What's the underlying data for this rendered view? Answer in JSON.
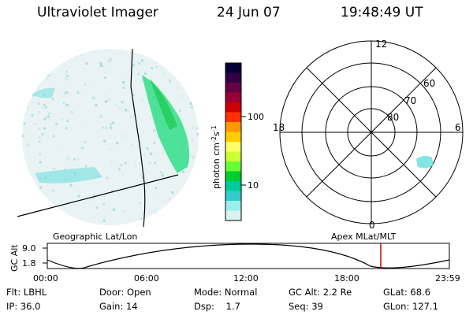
{
  "header": {
    "title": "Ultraviolet Imager",
    "date": "24 Jun 07",
    "time": "19:48:49 UT"
  },
  "colorbar": {
    "label": "photon cm",
    "label_sup1": "-2",
    "label_mid": "s",
    "label_sup2": "-1",
    "ticks": [
      "100",
      "10"
    ],
    "colors": [
      "#000033",
      "#330044",
      "#660044",
      "#990033",
      "#cc0000",
      "#ff3300",
      "#ff9900",
      "#ffcc00",
      "#ffff66",
      "#ccff33",
      "#66ff33",
      "#00cc33",
      "#00cc99",
      "#33cccc",
      "#99eeee",
      "#d9f2f2"
    ]
  },
  "polar": {
    "mlt_labels": {
      "top": "12",
      "left": "18",
      "right": "6",
      "bottom": "0"
    },
    "lat_labels": [
      "60",
      "70",
      "80"
    ]
  },
  "timeline": {
    "y_label": "GC Alt",
    "y_ticks": [
      "9.0",
      "1.8"
    ],
    "left_title": "Geographic Lat/Lon",
    "right_title": "Apex  MLat/MLT",
    "x_ticks": [
      "00:00",
      "06:00",
      "12:00",
      "18:00",
      "23:59"
    ]
  },
  "status": {
    "filter": "Flt: LBHL",
    "ip": "IP: 36.0",
    "door": "Door: Open",
    "gain": "Gain: 14",
    "mode": "Mode: Normal",
    "dsp_label": "Dsp:",
    "dsp_value": "1.7",
    "gc_alt": "GC Alt: 2.2 Re",
    "seq": "Seq: 39",
    "glat": "GLat:  68.6",
    "glon": "GLon: 127.1"
  }
}
